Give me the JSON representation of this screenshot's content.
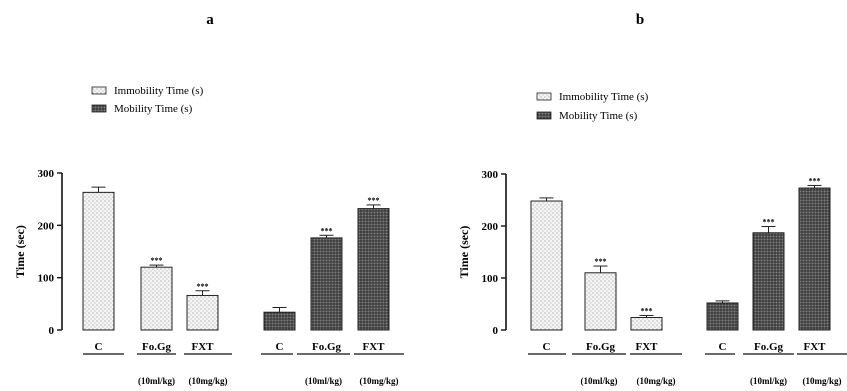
{
  "chart_data": [
    {
      "panel": "a",
      "type": "bar",
      "ylabel": "Time (sec)",
      "ylim": [
        0,
        300
      ],
      "yticks": [
        0,
        100,
        200,
        300
      ],
      "legend": [
        "Immobility Time (s)",
        "Mobility Time (s)"
      ],
      "legend_position": "top-left",
      "groups": [
        {
          "series": "Immobility Time (s)",
          "categories": [
            "C",
            "Fo.Gg",
            "FXT"
          ],
          "sublabels": [
            "",
            "(10ml/kg)",
            "(10mg/kg)"
          ],
          "values": [
            263,
            120,
            66
          ],
          "errors": [
            10,
            4,
            9
          ],
          "annotations": [
            "",
            "***",
            "***"
          ]
        },
        {
          "series": "Mobility Time (s)",
          "categories": [
            "C",
            "Fo.Gg",
            "FXT"
          ],
          "sublabels": [
            "",
            "(10ml/kg)",
            "(10mg/kg)"
          ],
          "values": [
            34,
            176,
            232
          ],
          "errors": [
            9,
            5,
            7
          ],
          "annotations": [
            "",
            "***",
            "***"
          ]
        }
      ]
    },
    {
      "panel": "b",
      "type": "bar",
      "ylabel": "Time (sec)",
      "ylim": [
        0,
        300
      ],
      "yticks": [
        0,
        100,
        200,
        300
      ],
      "legend": [
        "Immobility Time (s)",
        "Mobility Time (s)"
      ],
      "legend_position": "top-left",
      "groups": [
        {
          "series": "Immobility Time (s)",
          "categories": [
            "C",
            "Fo.Gg",
            "FXT"
          ],
          "sublabels": [
            "",
            "(10ml/kg)",
            "(10mg/kg)"
          ],
          "values": [
            248,
            110,
            24
          ],
          "errors": [
            6,
            13,
            4
          ],
          "annotations": [
            "",
            "***",
            "***"
          ]
        },
        {
          "series": "Mobility Time (s)",
          "categories": [
            "C",
            "Fo.Gg",
            "FXT"
          ],
          "sublabels": [
            "",
            "(10ml/kg)",
            "(10mg/kg)"
          ],
          "values": [
            52,
            187,
            273
          ],
          "errors": [
            4,
            12,
            5
          ],
          "annotations": [
            "",
            "***",
            "***"
          ]
        }
      ]
    }
  ]
}
